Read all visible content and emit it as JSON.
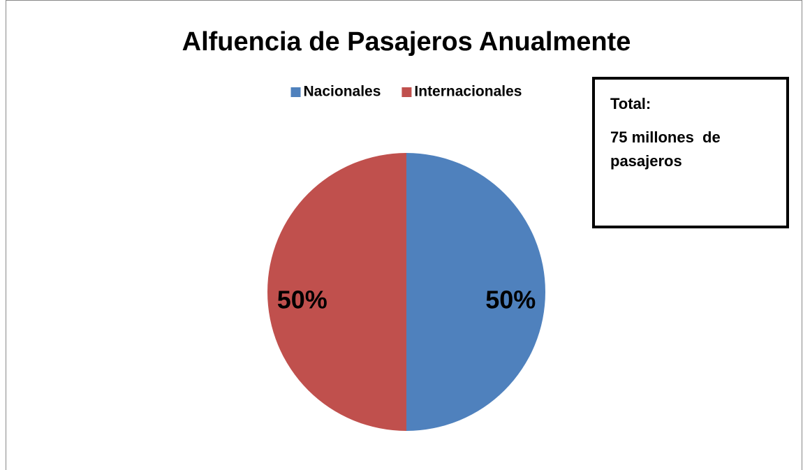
{
  "chart_data": {
    "type": "pie",
    "title": "Alfuencia de Pasajeros Anualmente",
    "categories": [
      "Nacionales",
      "Internacionales"
    ],
    "values": [
      50,
      50
    ],
    "value_labels": [
      "50%",
      "50%"
    ],
    "colors": [
      "#4f81bd",
      "#c0504d"
    ],
    "legend": "top",
    "annotation": [
      "Total:",
      "75 millones  de pasajeros"
    ]
  }
}
